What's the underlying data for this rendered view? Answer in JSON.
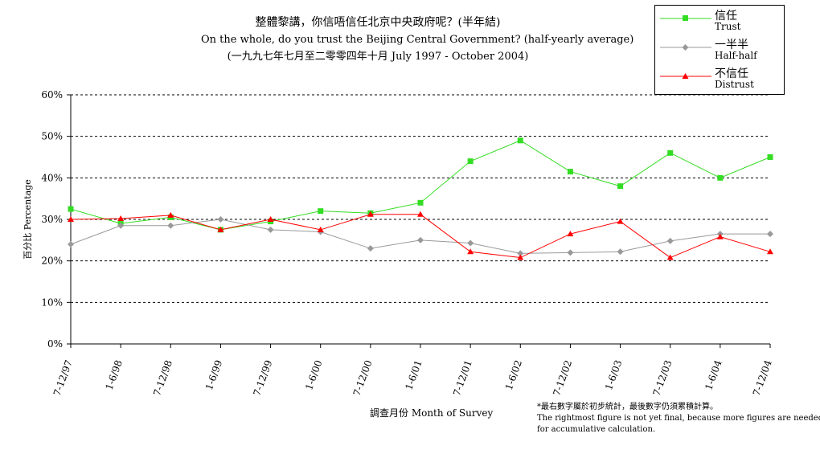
{
  "chart_data": {
    "type": "line",
    "title_zh": "整體黎講，你信唔信任北京中央政府呢？(半年結)",
    "title_en": "On the whole, do you trust the Beijing Central Government?  (half-yearly average)",
    "subtitle": "(一九九七年七月至二零零四年十月 July 1997 - October 2004)",
    "xlabel": "調查月份 Month of Survey",
    "ylabel": "百分比 Percentage",
    "ylim": [
      0,
      60
    ],
    "yticks": [
      "0%",
      "10%",
      "20%",
      "30%",
      "40%",
      "50%",
      "60%"
    ],
    "grid": "horizontal dotted",
    "legend_position": "top-right",
    "categories": [
      "7-12/97",
      "1-6/98",
      "7-12/98",
      "1-6/99",
      "7-12/99",
      "1-6/00",
      "7-12/00",
      "1-6/01",
      "7-12/01",
      "1-6/02",
      "7-12/02",
      "1-6/03",
      "7-12/03",
      "1-6/04",
      "7-12/04"
    ],
    "series": [
      {
        "name": "信任",
        "sub": "Trust",
        "color": "#33dd22",
        "marker": "square",
        "values": [
          32.5,
          29,
          30.5,
          27.5,
          29.5,
          32,
          31.5,
          34,
          44,
          49,
          41.5,
          38,
          46,
          40,
          45
        ]
      },
      {
        "name": "一半半",
        "sub": "Half-half",
        "color": "#999999",
        "marker": "diamond",
        "values": [
          24,
          28.5,
          28.5,
          30,
          27.5,
          27,
          23,
          25,
          24.3,
          21.8,
          22,
          22.2,
          24.8,
          26.5,
          26.5
        ]
      },
      {
        "name": "不信任",
        "sub": "Distrust",
        "color": "#ff0000",
        "marker": "triangle",
        "values": [
          30,
          30.2,
          31,
          27.5,
          30,
          27.5,
          31.2,
          31.2,
          22.2,
          20.8,
          26.5,
          29.5,
          20.8,
          25.8,
          22.2
        ]
      }
    ]
  },
  "note": {
    "line1": "*最右數字屬於初步統計，最後數字仍須累積計算。",
    "line2": "The rightmost figure is not yet final, because more figures are needed",
    "line3": "for accumulative calculation."
  }
}
